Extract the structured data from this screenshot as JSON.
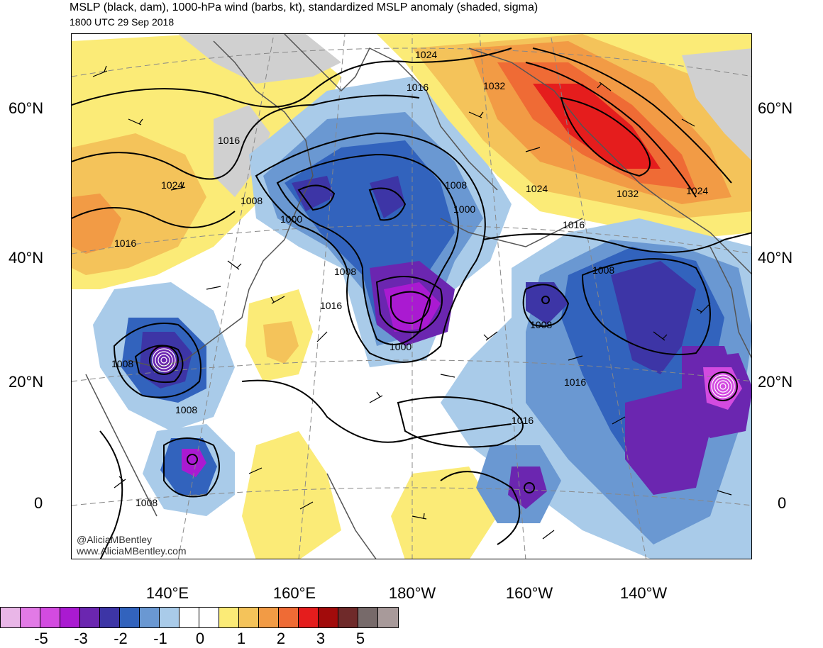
{
  "header": {
    "title": "MSLP (black, dam), 1000-hPa wind (barbs, kt), standardized MSLP anomaly (shaded, sigma)",
    "subtitle": "1800 UTC 29 Sep 2018"
  },
  "axes": {
    "lat_left": [
      "60°N",
      "40°N",
      "20°N",
      "0"
    ],
    "lat_right": [
      "60°N",
      "40°N",
      "20°N",
      "0"
    ],
    "lon_bottom": [
      "140°E",
      "160°E",
      "180°W",
      "160°W",
      "140°W"
    ]
  },
  "isobar_labels": {
    "l1024a": "1024",
    "l1016a": "1016",
    "l1032a": "1032",
    "l1016b": "1016",
    "l1024b": "1024",
    "l1008a": "1008",
    "l1000a": "1000",
    "l1008b": "1008",
    "l1000b": "1000",
    "l1024c": "1024",
    "l1032b": "1032",
    "l1024d": "1024",
    "l1016c": "1016",
    "l1016d": "1016",
    "l1008c": "1008",
    "l1016e": "1016",
    "l1000c": "1000",
    "l1008d": "1008",
    "l1008e": "1008",
    "l1008f": "1008",
    "l1016f": "1016",
    "l1016g": "1016",
    "l1008g": "1008",
    "l1008h": "1008"
  },
  "watermark": {
    "handle": "@AliciaMBentley",
    "site": "www.AliciaMBentley.com"
  },
  "colorbar": {
    "colors": [
      "#e9b6e7",
      "#e27ae6",
      "#d34be0",
      "#aa1ad1",
      "#6b26b0",
      "#3d35a6",
      "#3263bd",
      "#6a98d2",
      "#a9cbe9",
      "#ffffff",
      "#ffffff",
      "#fbeb77",
      "#f4c35a",
      "#f29b45",
      "#ef6b35",
      "#e51d1d",
      "#a20b0b",
      "#6f2a2a",
      "#776a6a",
      "#a89a9a"
    ],
    "labels": [
      "-5",
      "-3",
      "-2",
      "-1",
      "0",
      "1",
      "2",
      "3",
      "5"
    ]
  },
  "legend_colors": {
    "land_outline": "#555555",
    "isobar": "#000000"
  }
}
